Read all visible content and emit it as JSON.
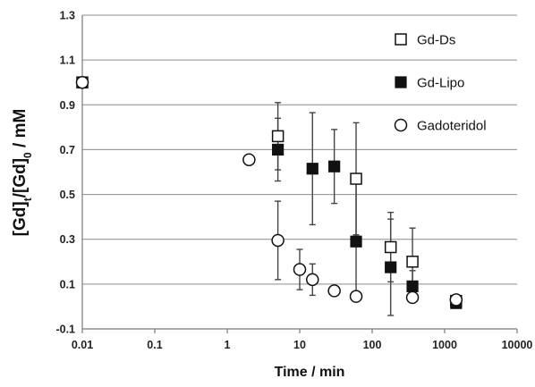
{
  "chart_data": {
    "type": "scatter",
    "xlabel": "Time / min",
    "ylabel": {
      "main": "[Gd]",
      "sub1": "t",
      "mid": "/[Gd]",
      "sub2": "0",
      "tail": " / mM"
    },
    "x_scale": "log",
    "xlim": [
      0.01,
      10000
    ],
    "ylim": [
      -0.1,
      1.3
    ],
    "x_ticks": [
      0.01,
      0.1,
      1,
      10,
      100,
      1000,
      10000
    ],
    "x_tick_labels": [
      "0.01",
      "0.1",
      "1",
      "10",
      "100",
      "1000",
      "10000"
    ],
    "y_ticks": [
      -0.1,
      0.1,
      0.3,
      0.5,
      0.7,
      0.9,
      1.1,
      1.3
    ],
    "y_tick_labels": [
      "-0.1",
      "0.1",
      "0.3",
      "0.5",
      "0.7",
      "0.9",
      "1.1",
      "1.3"
    ],
    "grid": "horizontal",
    "legend_position": "top-right",
    "series": [
      {
        "name": "Gd-Ds",
        "marker": "open-square",
        "points": [
          {
            "x": 0.01,
            "y": 1.0,
            "err": 0.02
          },
          {
            "x": 5,
            "y": 0.76,
            "err": 0.15
          },
          {
            "x": 60,
            "y": 0.57,
            "err": 0.25
          },
          {
            "x": 180,
            "y": 0.265,
            "err": 0.155
          },
          {
            "x": 360,
            "y": 0.2,
            "err": 0.15
          },
          {
            "x": 1440,
            "y": 0.025,
            "err": 0.015
          }
        ]
      },
      {
        "name": "Gd-Lipo",
        "marker": "filled-square",
        "points": [
          {
            "x": 5,
            "y": 0.7,
            "err": 0.14
          },
          {
            "x": 15,
            "y": 0.615,
            "err": 0.25
          },
          {
            "x": 30,
            "y": 0.625,
            "err": 0.165
          },
          {
            "x": 60,
            "y": 0.29,
            "err": 0.26
          },
          {
            "x": 180,
            "y": 0.175,
            "err": 0.215
          },
          {
            "x": 360,
            "y": 0.09,
            "err": 0.07
          },
          {
            "x": 1440,
            "y": 0.015,
            "err": 0.01
          }
        ]
      },
      {
        "name": "Gadoteridol",
        "marker": "open-circle",
        "points": [
          {
            "x": 0.01,
            "y": 1.0,
            "err": 0
          },
          {
            "x": 2,
            "y": 0.655,
            "err": 0
          },
          {
            "x": 5,
            "y": 0.295,
            "err": 0.175
          },
          {
            "x": 10,
            "y": 0.165,
            "err": 0.09
          },
          {
            "x": 15,
            "y": 0.12,
            "err": 0.07
          },
          {
            "x": 30,
            "y": 0.07,
            "err": 0
          },
          {
            "x": 60,
            "y": 0.045,
            "err": 0
          },
          {
            "x": 360,
            "y": 0.04,
            "err": 0.02
          },
          {
            "x": 1440,
            "y": 0.03,
            "err": 0
          }
        ]
      }
    ]
  }
}
